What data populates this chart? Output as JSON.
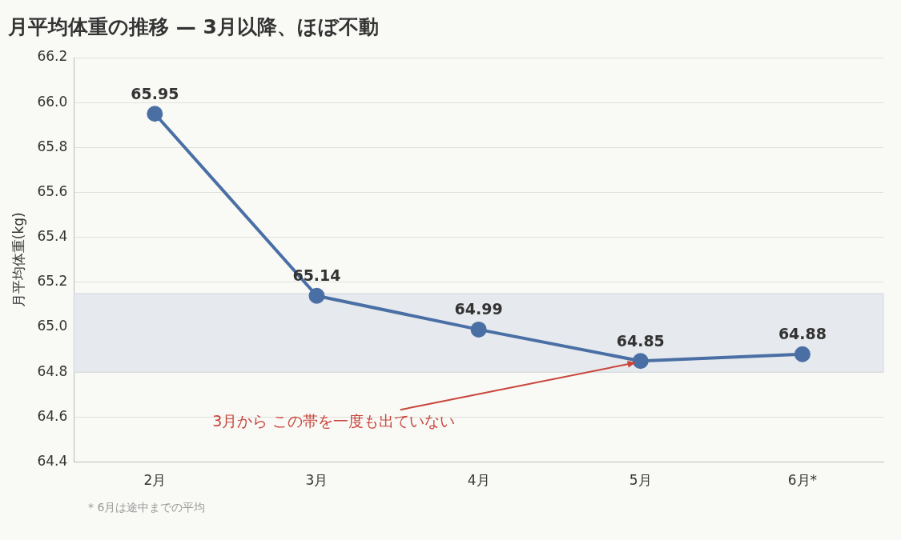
{
  "chart_data": {
    "type": "line",
    "title": "月平均体重の推移 — 3月以降、ほぼ不動",
    "ylabel": "月平均体重(kg)",
    "categories": [
      "2月",
      "3月",
      "4月",
      "5月",
      "6月*"
    ],
    "series": [
      {
        "color": "#4a6fa5",
        "values": [
          65.95,
          65.14,
          64.99,
          64.85,
          64.88
        ]
      }
    ],
    "ylim": [
      64.4,
      66.2
    ],
    "yticks": [
      {
        "value": 64.4,
        "label": "64.4"
      },
      {
        "value": 64.6,
        "label": "64.6"
      },
      {
        "value": 64.8,
        "label": "64.8"
      },
      {
        "value": 65.0,
        "label": "65.0"
      },
      {
        "value": 65.2,
        "label": "65.2"
      },
      {
        "value": 65.4,
        "label": "65.4"
      },
      {
        "value": 65.6,
        "label": "65.6"
      },
      {
        "value": 65.8,
        "label": "65.8"
      },
      {
        "value": 66.0,
        "label": "66.0"
      },
      {
        "value": 66.2,
        "label": "66.2"
      }
    ],
    "grid": "y",
    "marker": "circle",
    "line_style": "solid",
    "data_labels": true,
    "legend": false,
    "bands": [
      {
        "axis": "y",
        "from": 64.8,
        "to": 65.15,
        "color": "#e6e9ed"
      }
    ],
    "annotations": [
      {
        "text": "3月から この帯を一度も出ていない",
        "x": "5月",
        "y": 64.85
      },
      "* 6月は途中までの平均"
    ]
  }
}
